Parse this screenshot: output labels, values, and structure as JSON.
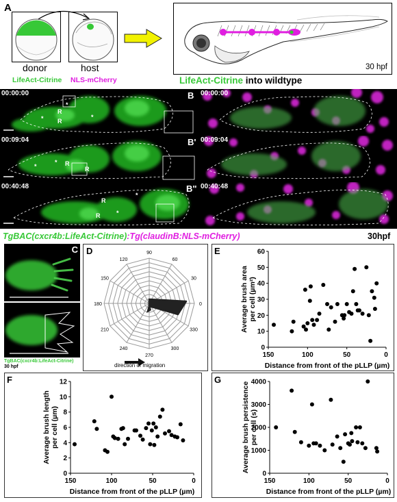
{
  "panel_a": {
    "label": "A",
    "donor_label": "donor",
    "host_label": "host",
    "donor_marker": "LifeAct-Citrine",
    "host_marker": "NLS-mCherry",
    "stage": "30 hpf",
    "caption_green": "LifeAct-Citrine",
    "caption_black": " into wildtype",
    "colors": {
      "green": "#37c837",
      "magenta": "#e01ee0",
      "arrow": "#f2f200"
    }
  },
  "panel_b": {
    "rows": [
      {
        "time": "00:00:00",
        "label": "B"
      },
      {
        "time": "00:09:04",
        "label": "B'"
      },
      {
        "time": "00:40:48",
        "label": "B\""
      }
    ],
    "caption_green": "TgBAC(cxcr4b:LifeAct-Citrine)",
    "caption_magenta": ":Tg(claudinB:NLS-mCherry)",
    "stage": "30hpf"
  },
  "panel_c": {
    "label": "C",
    "caption": "TgBAC(cxcr4b:LifeAct-Citrine)",
    "stage": "30 hpf"
  },
  "panel_d": {
    "label": "D",
    "angles": [
      "90",
      "60",
      "30",
      "0",
      "330",
      "300",
      "270",
      "240",
      "210",
      "180",
      "150",
      "120"
    ],
    "caption": "direction of migration"
  },
  "chart_data": [
    {
      "panel": "E",
      "type": "scatter",
      "xlabel": "Distance from front of the pLLP (µm)",
      "ylabel": "Average brush area per cell (µm²)",
      "xlim": [
        150,
        0
      ],
      "ylim": [
        0,
        60
      ],
      "xticks": [
        150,
        100,
        50,
        0
      ],
      "yticks": [
        0,
        10,
        20,
        30,
        40,
        50,
        60
      ],
      "x": [
        143,
        120,
        118,
        105,
        103,
        102,
        100,
        97,
        96,
        94,
        92,
        88,
        85,
        80,
        75,
        73,
        70,
        65,
        62,
        56,
        54,
        53,
        50,
        47,
        44,
        42,
        40,
        38,
        36,
        34,
        30,
        25,
        22,
        20,
        18,
        15,
        14,
        12
      ],
      "y": [
        14,
        10,
        16,
        13,
        36,
        11,
        15,
        29,
        38,
        17,
        14,
        17,
        21,
        39,
        27,
        11,
        25,
        16,
        27,
        20,
        18,
        20,
        27,
        22,
        21,
        35,
        49,
        27,
        23,
        23,
        21,
        50,
        20,
        4,
        35,
        31,
        24,
        40
      ]
    },
    {
      "panel": "F",
      "type": "scatter",
      "xlabel": "Distance from front of the pLLP (µm)",
      "ylabel": "Average brush length per cell (µm)",
      "xlim": [
        150,
        0
      ],
      "ylim": [
        0,
        12
      ],
      "xticks": [
        150,
        100,
        50,
        0
      ],
      "yticks": [
        0,
        2,
        4,
        6,
        8,
        10,
        12
      ],
      "x": [
        145,
        121,
        118,
        108,
        105,
        100,
        98,
        96,
        92,
        88,
        86,
        84,
        80,
        72,
        70,
        65,
        62,
        58,
        55,
        53,
        51,
        49,
        48,
        46,
        44,
        41,
        38,
        35,
        30,
        27,
        23,
        20,
        16,
        13
      ],
      "y": [
        3.8,
        6.8,
        5.8,
        3.0,
        2.8,
        10.0,
        4.8,
        4.6,
        4.5,
        5.8,
        5.9,
        3.8,
        4.5,
        5.6,
        5.6,
        4.9,
        4.4,
        5.9,
        6.5,
        3.8,
        5.6,
        6.5,
        3.7,
        6.0,
        4.8,
        7.4,
        8.3,
        5.2,
        5.5,
        5.0,
        4.8,
        4.7,
        6.4,
        4.3
      ]
    },
    {
      "panel": "G",
      "type": "scatter",
      "xlabel": "Distance from front of the pLLP (µm)",
      "ylabel": "Average brush persistence per cell (s)",
      "xlim": [
        150,
        0
      ],
      "ylim": [
        0,
        4000
      ],
      "xticks": [
        150,
        100,
        50,
        0
      ],
      "yticks": [
        0,
        1000,
        2000,
        3000,
        4000
      ],
      "x": [
        142,
        122,
        118,
        110,
        100,
        96,
        94,
        91,
        86,
        80,
        72,
        70,
        64,
        60,
        56,
        54,
        50,
        48,
        46,
        45,
        40,
        38,
        35,
        32,
        28,
        25,
        14,
        13
      ],
      "y": [
        2000,
        3600,
        1800,
        1350,
        1200,
        3000,
        1300,
        1300,
        1200,
        1000,
        3200,
        1250,
        1600,
        1100,
        500,
        1700,
        1300,
        1250,
        1750,
        1400,
        2000,
        1350,
        2000,
        1300,
        1100,
        4000,
        1100,
        950
      ]
    }
  ]
}
